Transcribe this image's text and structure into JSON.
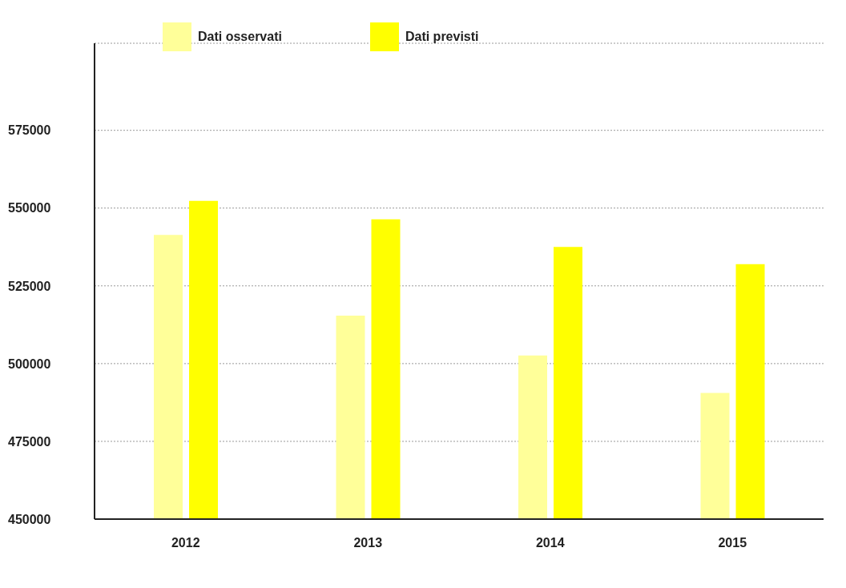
{
  "chart_data": {
    "type": "bar",
    "categories": [
      "2012",
      "2013",
      "2014",
      "2015"
    ],
    "series": [
      {
        "name": "Dati osservati",
        "color": "#ffff99",
        "values": [
          541400,
          515400,
          502600,
          490600
        ]
      },
      {
        "name": "Dati previsti",
        "color": "#ffff00",
        "values": [
          552300,
          546400,
          537500,
          532000
        ]
      }
    ],
    "ylim": [
      450000,
      603000
    ],
    "yticks": [
      450000,
      475000,
      500000,
      525000,
      550000,
      575000
    ],
    "grid": "y",
    "legend": "top left"
  }
}
